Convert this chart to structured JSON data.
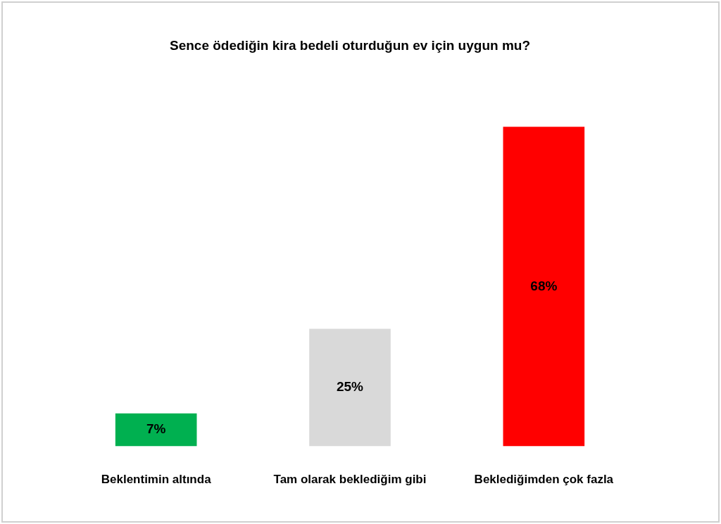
{
  "chart_data": {
    "type": "bar",
    "title": "Sence ödediğin kira bedeli oturduğun ev için uygun mu?",
    "categories": [
      "Beklentimin altında",
      "Tam olarak beklediğim gibi",
      "Beklediğimden çok fazla"
    ],
    "values": [
      7,
      25,
      68
    ],
    "colors": [
      "#00b050",
      "#d9d9d9",
      "#ff0000"
    ],
    "value_labels": [
      "7%",
      "25%",
      "68%"
    ],
    "grid": false,
    "legend": false
  }
}
